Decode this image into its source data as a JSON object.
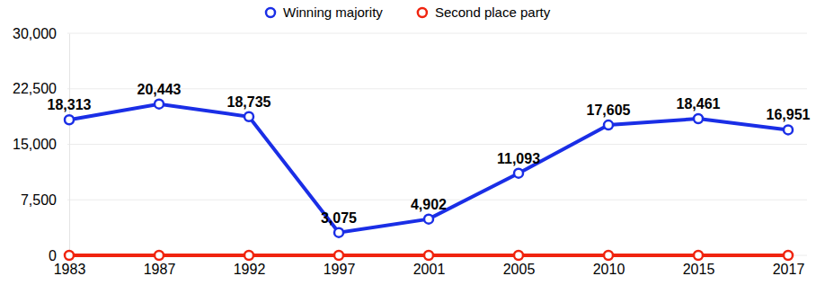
{
  "chart_data": {
    "type": "line",
    "categories": [
      "1983",
      "1987",
      "1992",
      "1997",
      "2001",
      "2005",
      "2010",
      "2015",
      "2017"
    ],
    "series": [
      {
        "name": "Winning majority",
        "color": "#1a2ee6",
        "marker": "circle",
        "data_labels": true,
        "values": [
          18313,
          20443,
          18735,
          3075,
          4902,
          11093,
          17605,
          18461,
          16951
        ],
        "value_labels": [
          "18,313",
          "20,443",
          "18,735",
          "3,075",
          "4,902",
          "11,093",
          "17,605",
          "18,461",
          "16,951"
        ]
      },
      {
        "name": "Second place party",
        "color": "#f0240f",
        "marker": "circle",
        "data_labels": false,
        "values": [
          0,
          0,
          0,
          0,
          0,
          0,
          0,
          0,
          0
        ]
      }
    ],
    "ylim": [
      0,
      30000
    ],
    "yticks": [
      0,
      {
        "value": 7500,
        "label": "7,500"
      },
      {
        "value": 15000,
        "label": "15,000"
      },
      {
        "value": 22500,
        "label": "22,500"
      },
      {
        "value": 30000,
        "label": "30,000"
      }
    ],
    "grid": true,
    "legend": "top"
  }
}
